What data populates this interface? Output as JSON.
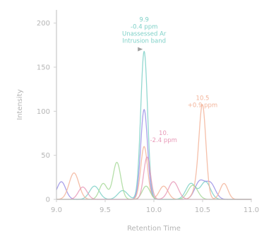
{
  "chart_data": {
    "type": "line",
    "xlabel": "Retention Time",
    "ylabel": "Intensity",
    "xlim": [
      9.0,
      11.0
    ],
    "ylim": [
      0,
      215
    ],
    "xticks": [
      {
        "value": 9.0,
        "label": "9.0"
      },
      {
        "value": 9.5,
        "label": "9.5"
      },
      {
        "value": 10.0,
        "label": "10.0"
      },
      {
        "value": 10.5,
        "label": "10.5"
      },
      {
        "value": 11.0,
        "label": "11.0"
      }
    ],
    "yticks": [
      {
        "value": 0,
        "label": "0"
      },
      {
        "value": 50,
        "label": "50"
      },
      {
        "value": 100,
        "label": "100"
      },
      {
        "value": 150,
        "label": "150"
      },
      {
        "value": 200,
        "label": "200"
      }
    ],
    "grid": false,
    "series": [
      {
        "color": "#7fd1c8",
        "peaks": [
          [
            9.39,
            15,
            0.05
          ],
          [
            9.68,
            10,
            0.05
          ],
          [
            9.9,
            168,
            0.035
          ],
          [
            10.38,
            18,
            0.05
          ],
          [
            10.53,
            20,
            0.05
          ]
        ]
      },
      {
        "color": "#9a90e6",
        "peaks": [
          [
            9.05,
            20,
            0.045
          ],
          [
            9.9,
            102,
            0.035
          ],
          [
            10.47,
            20,
            0.05
          ],
          [
            10.58,
            18,
            0.05
          ]
        ]
      },
      {
        "color": "#f3b49a",
        "peaks": [
          [
            9.18,
            30,
            0.05
          ],
          [
            9.9,
            60,
            0.035
          ],
          [
            10.1,
            15,
            0.045
          ],
          [
            10.45,
            14,
            0.045
          ],
          [
            10.5,
            100,
            0.035
          ],
          [
            10.72,
            18,
            0.04
          ]
        ]
      },
      {
        "color": "#a8d99a",
        "peaks": [
          [
            9.48,
            18,
            0.04
          ],
          [
            9.62,
            42,
            0.04
          ],
          [
            9.92,
            15,
            0.04
          ],
          [
            10.4,
            16,
            0.05
          ]
        ]
      },
      {
        "color": "#e89ab8",
        "peaks": [
          [
            9.27,
            14,
            0.045
          ],
          [
            9.93,
            48,
            0.035
          ],
          [
            10.2,
            20,
            0.05
          ]
        ]
      }
    ],
    "annotations": [
      {
        "x": 9.9,
        "y": 168,
        "color": "#7fd1c8",
        "lines": [
          "9.9",
          "-0.4 ppm",
          "Unassessed Ar",
          "Intrusion band"
        ],
        "marker": true
      },
      {
        "x": 10.5,
        "y": 100,
        "color": "#f3b49a",
        "lines": [
          "10.5",
          "+0.9 ppm"
        ],
        "marker": false
      },
      {
        "x": 10.1,
        "y": 60,
        "color": "#e89ab8",
        "lines": [
          "10.",
          "-2.4 ppm"
        ],
        "marker": false
      }
    ]
  }
}
